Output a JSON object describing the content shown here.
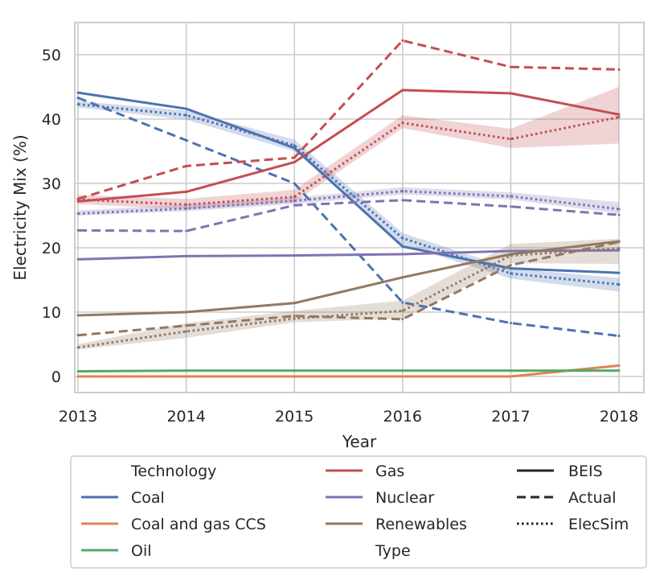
{
  "chart_data": {
    "type": "line",
    "title": "",
    "xlabel": "Year",
    "ylabel": "Electricity Mix (%)",
    "x": [
      2013,
      2014,
      2015,
      2016,
      2017,
      2018
    ],
    "x_ticks": [
      "2013",
      "2014",
      "2015",
      "2016",
      "2017",
      "2018"
    ],
    "xlim": [
      2012.97,
      2018.23
    ],
    "ylim": [
      -2.5,
      55
    ],
    "y_ticks": [
      0,
      10,
      20,
      30,
      40,
      50
    ],
    "y_tick_labels": [
      "0",
      "10",
      "20",
      "30",
      "40",
      "50"
    ],
    "grid": true,
    "legend_position": "bottom",
    "colors": {
      "Coal": "#4c72b0",
      "Coal and gas CCS": "#dd8452",
      "Oil": "#55a868",
      "Gas": "#c44e52",
      "Nuclear": "#8172b3",
      "Renewables": "#937860"
    },
    "series": [
      {
        "name": "Coal",
        "type": "BEIS",
        "values": [
          44.1,
          41.6,
          35.5,
          20.2,
          16.8,
          16.1
        ]
      },
      {
        "name": "Coal",
        "type": "Actual",
        "values": [
          43.3,
          36.7,
          30.0,
          11.5,
          8.3,
          6.3
        ]
      },
      {
        "name": "Coal",
        "type": "ElecSim",
        "values": [
          42.3,
          40.6,
          35.9,
          21.5,
          16.0,
          14.3
        ],
        "band": [
          [
            41.8,
            42.8
          ],
          [
            39.9,
            41.3
          ],
          [
            35.0,
            36.8
          ],
          [
            20.5,
            22.3
          ],
          [
            15.2,
            16.8
          ],
          [
            13.2,
            15.3
          ]
        ]
      },
      {
        "name": "Coal and gas CCS",
        "type": "BEIS",
        "values": [
          0.0,
          0.0,
          0.0,
          0.0,
          0.0,
          1.7
        ]
      },
      {
        "name": "Oil",
        "type": "BEIS",
        "values": [
          0.8,
          0.9,
          0.9,
          0.9,
          0.9,
          0.9
        ]
      },
      {
        "name": "Gas",
        "type": "BEIS",
        "values": [
          27.2,
          28.7,
          33.3,
          44.5,
          44.0,
          40.7
        ]
      },
      {
        "name": "Gas",
        "type": "Actual",
        "values": [
          27.6,
          32.7,
          34.0,
          52.2,
          48.1,
          47.7
        ]
      },
      {
        "name": "Gas",
        "type": "ElecSim",
        "values": [
          27.5,
          26.7,
          27.9,
          39.4,
          36.9,
          40.3
        ],
        "band": [
          [
            26.8,
            28.2
          ],
          [
            26.0,
            27.6
          ],
          [
            27.1,
            29.0
          ],
          [
            38.6,
            40.6
          ],
          [
            35.5,
            38.5
          ],
          [
            36.2,
            45.0
          ]
        ]
      },
      {
        "name": "Nuclear",
        "type": "BEIS",
        "values": [
          18.2,
          18.7,
          18.8,
          19.0,
          19.5,
          19.6
        ]
      },
      {
        "name": "Nuclear",
        "type": "Actual",
        "values": [
          22.7,
          22.6,
          26.6,
          27.4,
          26.4,
          25.1
        ]
      },
      {
        "name": "Nuclear",
        "type": "ElecSim",
        "values": [
          25.3,
          26.1,
          27.3,
          28.8,
          28.0,
          26.0
        ],
        "band": [
          [
            25.0,
            25.8
          ],
          [
            25.7,
            26.7
          ],
          [
            26.8,
            27.8
          ],
          [
            28.3,
            29.4
          ],
          [
            27.5,
            28.6
          ],
          [
            25.3,
            27.1
          ]
        ]
      },
      {
        "name": "Renewables",
        "type": "BEIS",
        "values": [
          9.5,
          10.0,
          11.4,
          15.4,
          19.0,
          21.0
        ]
      },
      {
        "name": "Renewables",
        "type": "Actual",
        "values": [
          6.4,
          7.9,
          9.4,
          8.9,
          17.3,
          20.9
        ]
      },
      {
        "name": "Renewables",
        "type": "ElecSim",
        "values": [
          4.5,
          7.0,
          9.0,
          10.2,
          18.8,
          19.9
        ],
        "band": [
          [
            4.2,
            5.0
          ],
          [
            6.0,
            8.3
          ],
          [
            8.4,
            10.2
          ],
          [
            9.0,
            11.8
          ],
          [
            17.6,
            20.6
          ],
          [
            17.5,
            21.4
          ]
        ]
      }
    ]
  },
  "legend": {
    "technology_heading": "Technology",
    "type_heading": "Type",
    "tech_items": [
      "Coal",
      "Coal and gas CCS",
      "Oil",
      "Gas",
      "Nuclear",
      "Renewables"
    ],
    "type_items": [
      "BEIS",
      "Actual",
      "ElecSim"
    ]
  }
}
